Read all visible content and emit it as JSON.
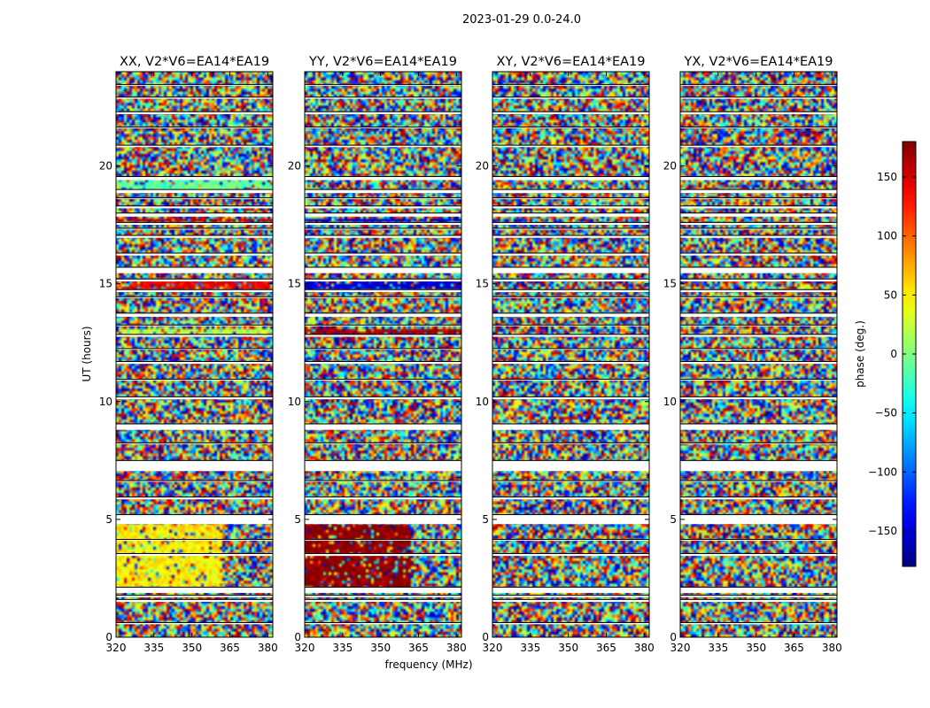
{
  "chart_data": {
    "type": "heatmap",
    "suptitle": "2023-01-29 0.0-24.0",
    "xlabel": "frequency (MHz)",
    "ylabel": "UT (hours)",
    "xlim": [
      320,
      382
    ],
    "ylim": [
      0,
      24
    ],
    "xticks": [
      320,
      335,
      350,
      365,
      380
    ],
    "yticks": [
      0,
      5,
      10,
      15,
      20
    ],
    "colorbar": {
      "label": "phase (deg.)",
      "range": [
        -180,
        180
      ],
      "ticks": [
        150,
        100,
        50,
        0,
        -50,
        -100,
        -150
      ],
      "colormap": "jet"
    },
    "panels": [
      {
        "title": "XX, V2*V6=EA14*EA19",
        "signal_phase": [
          {
            "t0": 2.1,
            "t1": 4.8,
            "f0": 320,
            "f1": 362,
            "phase": 50
          },
          {
            "t0": 14.8,
            "t1": 15.1,
            "f0": 320,
            "f1": 382,
            "phase": 140
          },
          {
            "t0": 12.9,
            "t1": 13.1,
            "f0": 320,
            "f1": 382,
            "phase": 20
          },
          {
            "t0": 19.0,
            "t1": 19.4,
            "f0": 320,
            "f1": 382,
            "phase": -10
          },
          {
            "t0": 17.6,
            "t1": 17.8,
            "f0": 320,
            "f1": 382,
            "phase": 160
          }
        ]
      },
      {
        "title": "YY, V2*V6=EA14*EA19",
        "signal_phase": [
          {
            "t0": 2.1,
            "t1": 4.8,
            "f0": 320,
            "f1": 362,
            "phase": 178
          },
          {
            "t0": 14.8,
            "t1": 15.1,
            "f0": 320,
            "f1": 382,
            "phase": -150
          },
          {
            "t0": 12.9,
            "t1": 13.1,
            "f0": 320,
            "f1": 382,
            "phase": 165
          },
          {
            "t0": 17.6,
            "t1": 17.8,
            "f0": 320,
            "f1": 382,
            "phase": -150
          }
        ]
      },
      {
        "title": "XY, V2*V6=EA14*EA19",
        "signal_phase": []
      },
      {
        "title": "YX, V2*V6=EA14*EA19",
        "signal_phase": []
      }
    ],
    "flagged_intervals_hours": [
      [
        0.55,
        0.62
      ],
      [
        1.5,
        1.6
      ],
      [
        1.7,
        1.78
      ],
      [
        1.88,
        2.12
      ],
      [
        3.45,
        3.55
      ],
      [
        4.1,
        4.15
      ],
      [
        4.8,
        5.2
      ],
      [
        5.85,
        5.95
      ],
      [
        6.6,
        6.65
      ],
      [
        7.05,
        7.5
      ],
      [
        8.2,
        8.25
      ],
      [
        8.8,
        9.05
      ],
      [
        10.1,
        10.2
      ],
      [
        10.9,
        10.95
      ],
      [
        11.6,
        11.7
      ],
      [
        12.2,
        12.25
      ],
      [
        12.75,
        12.85
      ],
      [
        13.2,
        13.25
      ],
      [
        13.6,
        13.75
      ],
      [
        14.4,
        14.45
      ],
      [
        14.65,
        14.75
      ],
      [
        15.1,
        15.2
      ],
      [
        15.45,
        15.7
      ],
      [
        16.2,
        16.3
      ],
      [
        16.95,
        17.05
      ],
      [
        17.3,
        17.35
      ],
      [
        17.5,
        17.6
      ],
      [
        17.85,
        18.0
      ],
      [
        18.2,
        18.3
      ],
      [
        18.6,
        18.65
      ],
      [
        18.85,
        19.0
      ],
      [
        19.4,
        19.55
      ],
      [
        20.8,
        20.88
      ],
      [
        21.6,
        21.65
      ],
      [
        22.2,
        22.3
      ],
      [
        22.85,
        22.92
      ],
      [
        23.4,
        23.45
      ]
    ]
  }
}
